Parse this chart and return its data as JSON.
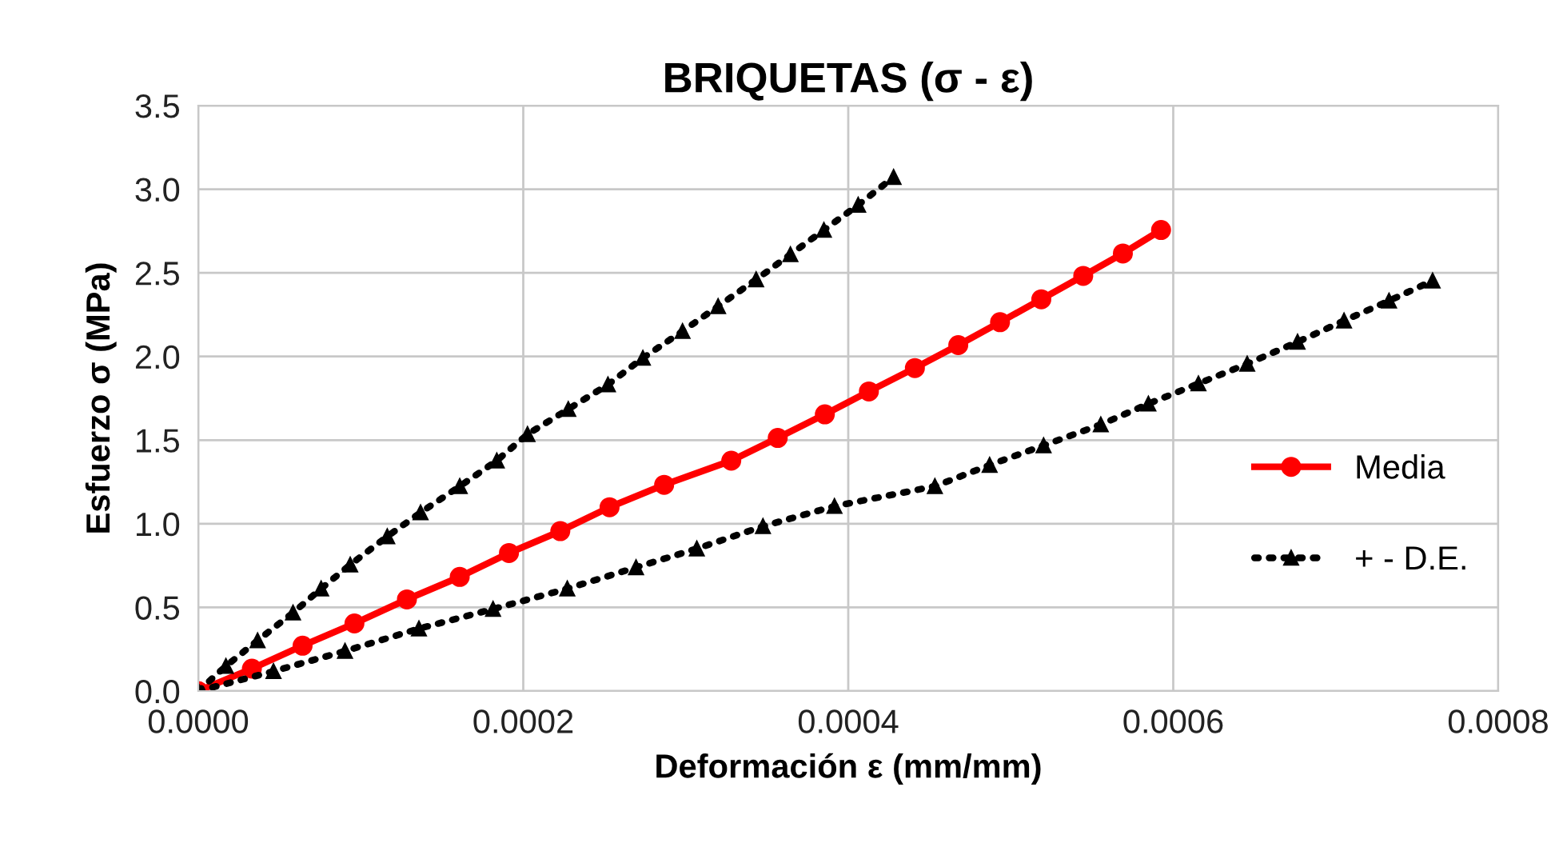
{
  "chart_data": {
    "type": "line",
    "title": "BRIQUETAS (σ - ε)",
    "xlabel": "Deformación ε (mm/mm)",
    "ylabel": "Esfuerzo σ (MPa)",
    "series": [
      {
        "name": "Media",
        "color": "#ff0000",
        "marker": "circle",
        "line_style": "solid",
        "x": [
          0,
          3.3e-05,
          6.42e-05,
          9.61e-05,
          0.0001284,
          0.0001609,
          0.0001912,
          0.0002228,
          0.0002531,
          0.0002867,
          0.000328,
          0.0003566,
          0.0003856,
          0.0004127,
          0.000441,
          0.0004677,
          0.0004934,
          0.0005188,
          0.0005446,
          0.000569,
          0.0005925
        ],
        "values": [
          0,
          0.134,
          0.271,
          0.404,
          0.548,
          0.682,
          0.825,
          0.956,
          1.099,
          1.233,
          1.377,
          1.513,
          1.654,
          1.791,
          1.931,
          2.068,
          2.205,
          2.342,
          2.482,
          2.616,
          2.756
        ]
      },
      {
        "name": "+ - D.E.",
        "color": "#000000",
        "marker": "triangle",
        "line_style": "dotted",
        "x": [
          0,
          1.7e-05,
          3.65e-05,
          5.83e-05,
          7.56e-05,
          9.35e-05,
          0.0001163,
          0.0001368,
          0.0001609,
          0.0001837,
          0.0002026,
          0.0002277,
          0.0002521,
          0.0002736,
          0.000298,
          0.0003199,
          0.0003433,
          0.0003644,
          0.000385,
          0.0004061,
          0.0004279
        ],
        "values": [
          0,
          0.149,
          0.302,
          0.468,
          0.612,
          0.755,
          0.924,
          1.067,
          1.224,
          1.377,
          1.535,
          1.685,
          1.832,
          1.991,
          2.151,
          2.3,
          2.46,
          2.61,
          2.756,
          2.906,
          3.072
        ]
      },
      {
        "color": "#000000",
        "marker": "triangle",
        "line_style": "dotted",
        "x": [
          0,
          4.63e-05,
          9.03e-05,
          0.0001358,
          0.0001814,
          0.0002271,
          0.0002694,
          0.0003068,
          0.0003475,
          0.0003915,
          0.0004533,
          0.000487,
          0.0005202,
          0.0005554,
          0.0005847,
          0.0006155,
          0.0006455,
          0.0006765,
          0.0007051,
          0.0007328,
          0.0007596
        ],
        "values": [
          0,
          0.118,
          0.239,
          0.373,
          0.49,
          0.612,
          0.739,
          0.851,
          0.985,
          1.105,
          1.224,
          1.351,
          1.468,
          1.593,
          1.717,
          1.838,
          1.956,
          2.087,
          2.214,
          2.333,
          2.453
        ]
      }
    ],
    "xlim": [
      0,
      0.0008
    ],
    "xticks": [
      {
        "value": 0,
        "label": "0.0000"
      },
      {
        "value": 0.0002,
        "label": "0.0002"
      },
      {
        "value": 0.0004,
        "label": "0.0004"
      },
      {
        "value": 0.0006,
        "label": "0.0006"
      },
      {
        "value": 0.0008,
        "label": "0.0008"
      }
    ],
    "ylim": [
      0,
      3.5
    ],
    "yticks": [
      {
        "value": 0,
        "label": "0.0"
      },
      {
        "value": 0.5,
        "label": "0.5"
      },
      {
        "value": 1,
        "label": "1.0"
      },
      {
        "value": 1.5,
        "label": "1.5"
      },
      {
        "value": 2,
        "label": "2.0"
      },
      {
        "value": 2.5,
        "label": "2.5"
      },
      {
        "value": 3,
        "label": "3.0"
      },
      {
        "value": 3.5,
        "label": "3.5"
      }
    ],
    "grid": true,
    "legend": "right"
  }
}
